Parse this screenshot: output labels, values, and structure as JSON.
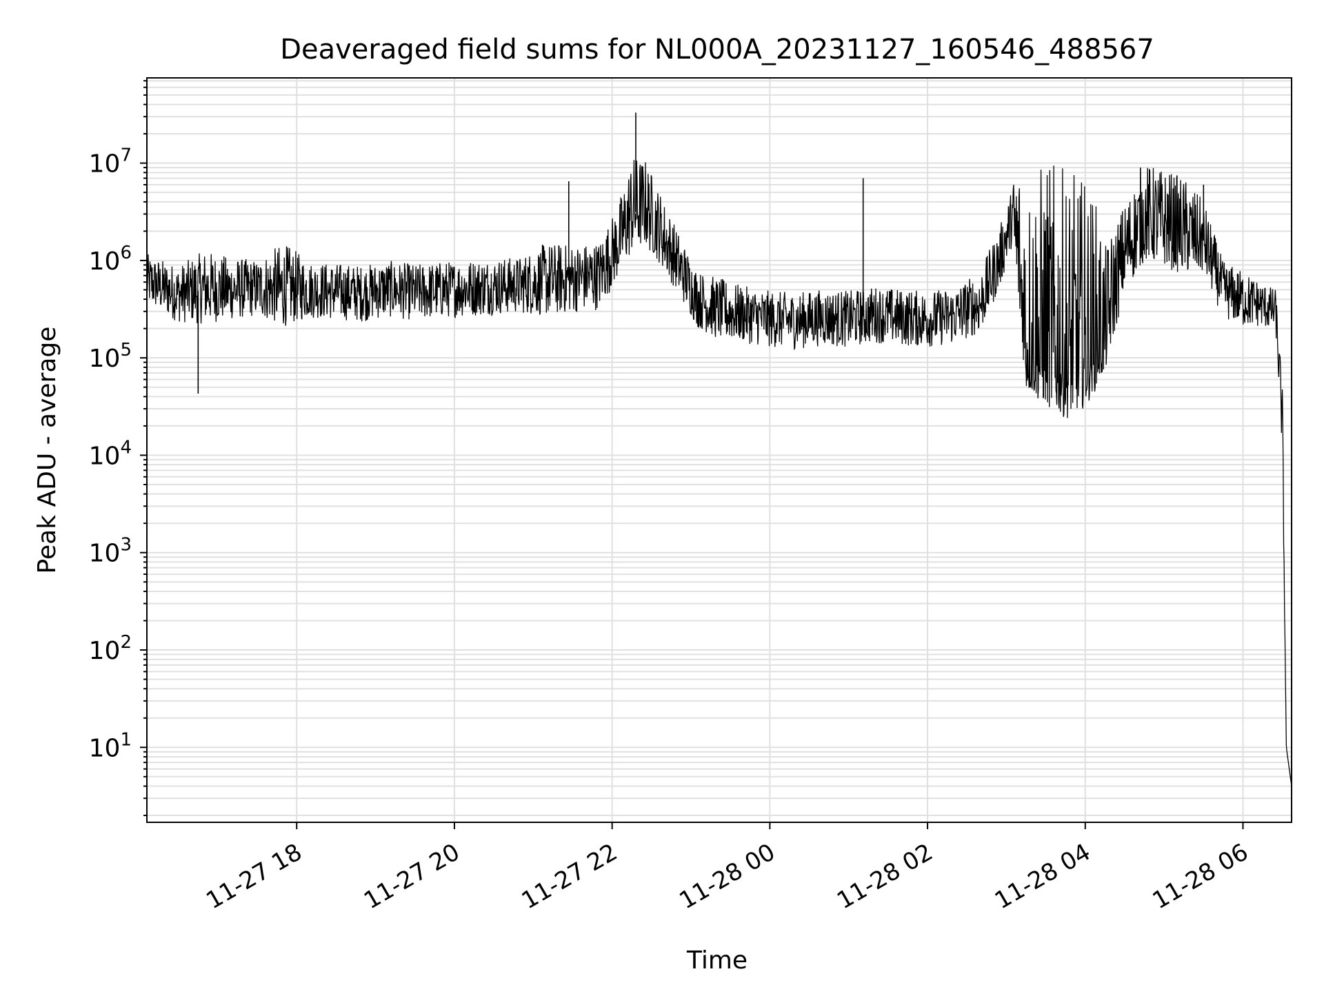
{
  "chart_data": {
    "type": "line",
    "title": "Deaveraged field sums for NL000A_20231127_160546_488567",
    "xlabel": "Time",
    "ylabel": "Peak ADU - average",
    "yscale": "log",
    "ylim": [
      1.7,
      75000000
    ],
    "xlim": [
      "2023-11-27 16:06",
      "2023-11-28 06:37"
    ],
    "grid": true,
    "legend": "none",
    "x_ticks": [
      "11-27 18",
      "11-27 20",
      "11-27 22",
      "11-28 00",
      "11-28 02",
      "11-28 04",
      "11-28 06"
    ],
    "y_ticks": [
      {
        "base": "10",
        "exp": "1",
        "value": 10
      },
      {
        "base": "10",
        "exp": "2",
        "value": 100
      },
      {
        "base": "10",
        "exp": "3",
        "value": 1000
      },
      {
        "base": "10",
        "exp": "4",
        "value": 10000
      },
      {
        "base": "10",
        "exp": "5",
        "value": 100000
      },
      {
        "base": "10",
        "exp": "6",
        "value": 1000000
      },
      {
        "base": "10",
        "exp": "7",
        "value": 10000000
      }
    ],
    "line_color": "#000000",
    "grid_color": "#e0e0e0",
    "series": [
      {
        "x": [
          "2023-11-27 16:06",
          "2023-11-27 16:30",
          "2023-11-27 16:50",
          "2023-11-27 17:10",
          "2023-11-27 17:30",
          "2023-11-27 17:50",
          "2023-11-27 18:10",
          "2023-11-27 18:30",
          "2023-11-27 18:50",
          "2023-11-27 19:10",
          "2023-11-27 19:30",
          "2023-11-27 19:50",
          "2023-11-27 20:10",
          "2023-11-27 20:30",
          "2023-11-27 20:50",
          "2023-11-27 21:10",
          "2023-11-27 21:30",
          "2023-11-27 21:50",
          "2023-11-27 22:05",
          "2023-11-27 22:15",
          "2023-11-27 22:25",
          "2023-11-27 22:35",
          "2023-11-27 22:50",
          "2023-11-27 23:05",
          "2023-11-27 23:20",
          "2023-11-27 23:40",
          "2023-11-28 00:00",
          "2023-11-28 00:20",
          "2023-11-28 00:40",
          "2023-11-28 01:00",
          "2023-11-28 01:20",
          "2023-11-28 01:40",
          "2023-11-28 02:00",
          "2023-11-28 02:20",
          "2023-11-28 02:40",
          "2023-11-28 02:55",
          "2023-11-28 03:05",
          "2023-11-28 03:15",
          "2023-11-28 03:30",
          "2023-11-28 03:45",
          "2023-11-28 04:00",
          "2023-11-28 04:15",
          "2023-11-28 04:30",
          "2023-11-28 04:45",
          "2023-11-28 05:00",
          "2023-11-28 05:15",
          "2023-11-28 05:30",
          "2023-11-28 05:45",
          "2023-11-28 06:00",
          "2023-11-28 06:15",
          "2023-11-28 06:25",
          "2023-11-28 06:30",
          "2023-11-28 06:33",
          "2023-11-28 06:37"
        ],
        "y": [
          600000,
          450000,
          500000,
          480000,
          520000,
          470000,
          500000,
          480000,
          460000,
          510000,
          470000,
          500000,
          520000,
          540000,
          560000,
          600000,
          650000,
          700000,
          1500000,
          3000000,
          3500000,
          2200000,
          900000,
          400000,
          300000,
          280000,
          250000,
          240000,
          260000,
          250000,
          280000,
          260000,
          250000,
          270000,
          350000,
          1000000,
          3000000,
          100000,
          80000,
          60000,
          70000,
          150000,
          1200000,
          2500000,
          2200000,
          1800000,
          1600000,
          500000,
          400000,
          350000,
          300000,
          20000,
          10,
          4
        ],
        "noise_up": [
          1.4,
          1.4,
          1.6,
          1.5,
          1.4,
          1.8,
          1.4,
          1.4,
          1.4,
          1.4,
          1.4,
          1.4,
          1.4,
          1.4,
          1.4,
          1.6,
          1.5,
          1.5,
          1.6,
          2,
          1.8,
          1.6,
          1.5,
          1.4,
          1.5,
          1.4,
          1.4,
          1.4,
          1.4,
          1.4,
          1.4,
          1.4,
          1.4,
          1.4,
          1.5,
          1.5,
          1.4,
          8,
          12,
          12,
          10,
          3,
          1.8,
          2,
          2,
          2,
          1.6,
          1.4,
          1.4,
          1.3,
          1.3,
          1.6,
          1,
          1
        ],
        "noise_down": [
          1.3,
          1.4,
          1.5,
          1.4,
          1.4,
          1.5,
          1.4,
          1.4,
          1.4,
          1.4,
          1.4,
          1.4,
          1.4,
          1.4,
          1.4,
          1.5,
          1.5,
          1.5,
          1.5,
          1.6,
          1.6,
          1.5,
          1.4,
          1.4,
          1.4,
          1.4,
          1.4,
          1.4,
          1.4,
          1.4,
          1.4,
          1.4,
          1.4,
          1.4,
          1.4,
          1.4,
          1.4,
          1.5,
          1.6,
          1.6,
          1.5,
          1.5,
          1.6,
          1.6,
          1.6,
          1.6,
          1.5,
          1.4,
          1.4,
          1.3,
          1.3,
          1.4,
          1,
          1
        ]
      }
    ],
    "spikes": [
      {
        "x": "2023-11-27 16:45",
        "y": 43000
      },
      {
        "x": "2023-11-27 21:27",
        "y": 6500000
      },
      {
        "x": "2023-11-27 22:18",
        "y": 33000000
      },
      {
        "x": "2023-11-28 01:11",
        "y": 7000000
      },
      {
        "x": "2023-11-28 04:42",
        "y": 9000000
      },
      {
        "x": "2023-11-28 05:30",
        "y": 6000000
      }
    ]
  }
}
